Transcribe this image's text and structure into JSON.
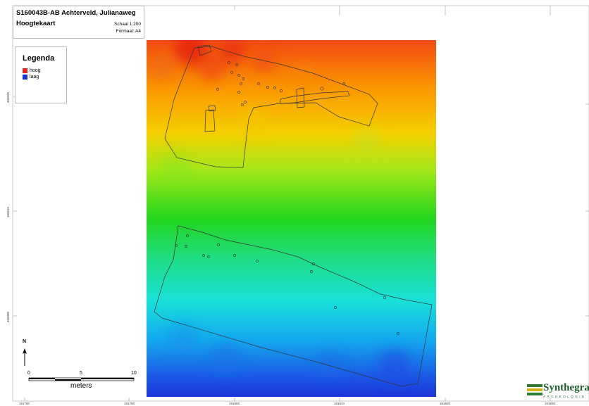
{
  "header": {
    "title": "S160043B-AB Achterveld, Julianaweg",
    "subtitle": "Hoogtekaart",
    "scale": "Schaal 1:200",
    "format": "Formaat: A4"
  },
  "legend": {
    "title": "Legenda",
    "items": [
      {
        "label": "hoog",
        "color": "#e8231c"
      },
      {
        "label": "laag",
        "color": "#1230d6"
      }
    ]
  },
  "colors": {
    "high": "#e8231c",
    "mid_high": "#f5a400",
    "mid": "#2fd42b",
    "mid_low": "#00d8d8",
    "low": "#1230d6"
  },
  "x_ticks": [
    "161780",
    "161790",
    "161800",
    "161810",
    "161820",
    "161830"
  ],
  "y_ticks": [
    "466020",
    "466010",
    "466000"
  ],
  "north_arrow": {
    "label": "N"
  },
  "scalebar": {
    "labels": [
      "0",
      "5",
      "10"
    ],
    "unit": "meters"
  },
  "logo": {
    "name": "Synthegra",
    "sub": "ARCHEOLOGIE",
    "icon": "synthegra-logo-icon"
  }
}
